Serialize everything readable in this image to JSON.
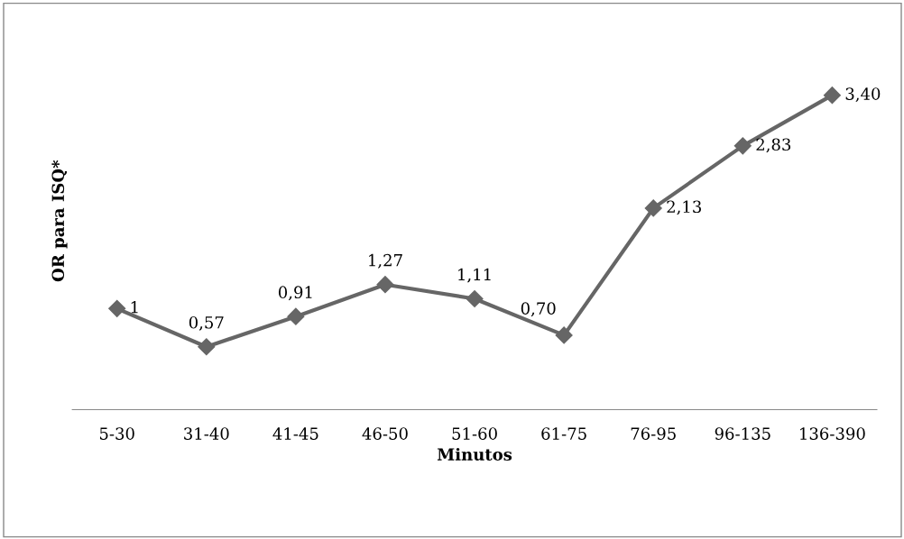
{
  "chart_data": {
    "type": "line",
    "xlabel": "Minutos",
    "ylabel": "OR para ISQ*",
    "categories": [
      "5-30",
      "31-40",
      "41-45",
      "46-50",
      "51-60",
      "61-75",
      "76-95",
      "96-135",
      "136-390"
    ],
    "series": [
      {
        "color": "#666666",
        "values": [
          1,
          0.57,
          0.91,
          1.27,
          1.11,
          0.7,
          2.13,
          2.83,
          3.4
        ],
        "value_labels": [
          "1",
          "0,57",
          "0,91",
          "1,27",
          "1,11",
          "0,70",
          "2,13",
          "2,83",
          "3,40"
        ]
      }
    ],
    "tick_labels": "x",
    "marker": "diamond",
    "line_style": "solid",
    "grid": false,
    "legend": false
  }
}
